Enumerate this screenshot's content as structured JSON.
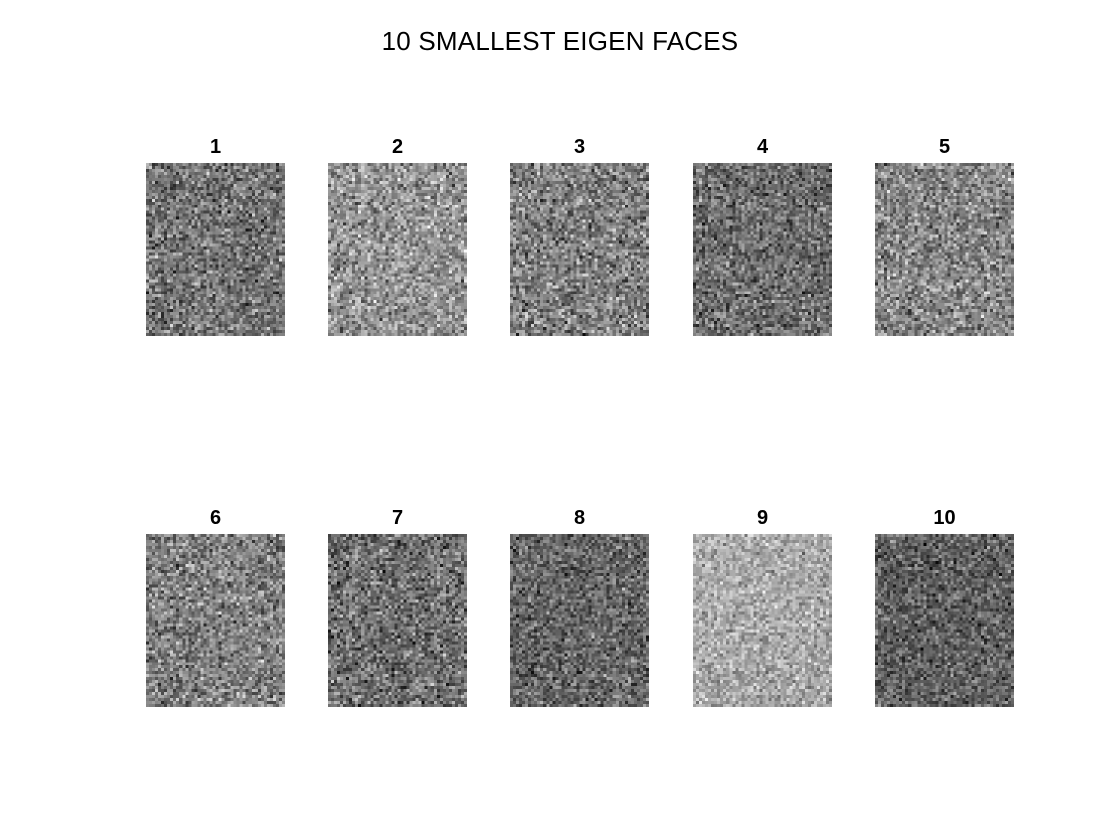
{
  "figure": {
    "title": "10 SMALLEST EIGEN FACES"
  },
  "faces": [
    {
      "label": "1",
      "mean_gray": 0.46,
      "contrast": 0.2
    },
    {
      "label": "2",
      "mean_gray": 0.58,
      "contrast": 0.2
    },
    {
      "label": "3",
      "mean_gray": 0.5,
      "contrast": 0.21
    },
    {
      "label": "4",
      "mean_gray": 0.43,
      "contrast": 0.19
    },
    {
      "label": "5",
      "mean_gray": 0.52,
      "contrast": 0.2
    },
    {
      "label": "6",
      "mean_gray": 0.5,
      "contrast": 0.2
    },
    {
      "label": "7",
      "mean_gray": 0.44,
      "contrast": 0.2
    },
    {
      "label": "8",
      "mean_gray": 0.4,
      "contrast": 0.18
    },
    {
      "label": "9",
      "mean_gray": 0.66,
      "contrast": 0.15
    },
    {
      "label": "10",
      "mean_gray": 0.38,
      "contrast": 0.17
    }
  ]
}
